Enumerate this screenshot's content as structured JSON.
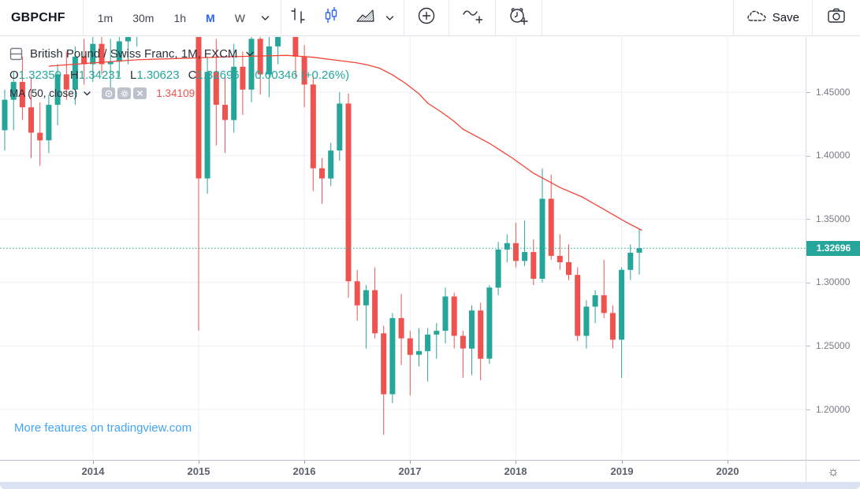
{
  "toolbar": {
    "symbol": "GBPCHF",
    "intervals": [
      {
        "label": "1m",
        "active": false
      },
      {
        "label": "30m",
        "active": false
      },
      {
        "label": "1h",
        "active": false
      },
      {
        "label": "M",
        "active": true
      },
      {
        "label": "W",
        "active": false
      }
    ],
    "save_label": "Save"
  },
  "legend": {
    "title": "British Pound / Swiss Franc, 1M, FXCM",
    "open_label": "O",
    "open": "1.32350",
    "high_label": "H",
    "high": "1.34231",
    "low_label": "L",
    "low": "1.30623",
    "close_label": "C",
    "close": "1.32696",
    "change": "+0.00346 (+0.26%)",
    "ma_label": "MA (50, close)",
    "ma_value": "1.34109"
  },
  "watermark": {
    "link_text": "More features on tradingview.com"
  },
  "price_axis": {
    "last_price_label": "1.32696"
  },
  "colors": {
    "up": "#26a69a",
    "down": "#ef5350",
    "ma_line": "#f44336",
    "accent_blue": "#2962ff",
    "link_blue": "#42a5f5",
    "grid": "#eef1f8",
    "badge_bg": "#26a69a"
  },
  "chart_data": {
    "type": "candlestick",
    "title": "British Pound / Swiss Franc",
    "interval": "1M",
    "exchange": "FXCM",
    "legend_position": "top-left",
    "grid": true,
    "price_gridlines": [
      1.45,
      1.4,
      1.35,
      1.3,
      1.25,
      1.2
    ],
    "price_tick_labels": [
      "1.45000",
      "1.40000",
      "1.35000",
      "1.30000",
      "1.25000",
      "1.20000"
    ],
    "year_ticks": [
      {
        "label": "2014",
        "i": 10
      },
      {
        "label": "2015",
        "i": 22
      },
      {
        "label": "2016",
        "i": 34
      },
      {
        "label": "2017",
        "i": 46
      },
      {
        "label": "2018",
        "i": 58
      },
      {
        "label": "2019",
        "i": 70
      },
      {
        "label": "2020",
        "i": 82
      }
    ],
    "ylim_visible": [
      1.178,
      1.493
    ],
    "last_price": 1.32696,
    "candles": [
      [
        "2013-03",
        1.42,
        1.452,
        1.404,
        1.444
      ],
      [
        "2013-04",
        1.444,
        1.466,
        1.42,
        1.458
      ],
      [
        "2013-05",
        1.458,
        1.478,
        1.428,
        1.438
      ],
      [
        "2013-06",
        1.438,
        1.462,
        1.398,
        1.418
      ],
      [
        "2013-07",
        1.418,
        1.442,
        1.392,
        1.412
      ],
      [
        "2013-08",
        1.412,
        1.448,
        1.402,
        1.44
      ],
      [
        "2013-09",
        1.44,
        1.472,
        1.424,
        1.464
      ],
      [
        "2013-10",
        1.464,
        1.482,
        1.444,
        1.452
      ],
      [
        "2013-11",
        1.452,
        1.486,
        1.44,
        1.478
      ],
      [
        "2013-12",
        1.478,
        1.492,
        1.456,
        1.472
      ],
      [
        "2014-01",
        1.472,
        1.498,
        1.458,
        1.488
      ],
      [
        "2014-02",
        1.488,
        1.502,
        1.464,
        1.472
      ],
      [
        "2014-03",
        1.472,
        1.492,
        1.452,
        1.474
      ],
      [
        "2014-04",
        1.474,
        1.502,
        1.462,
        1.49
      ],
      [
        "2014-05",
        1.49,
        1.512,
        1.472,
        1.5
      ],
      [
        "2014-06",
        1.5,
        1.524,
        1.486,
        1.518
      ],
      [
        "2014-07",
        1.518,
        1.54,
        1.504,
        1.532
      ],
      [
        "2014-08",
        1.532,
        1.546,
        1.512,
        1.528
      ],
      [
        "2014-09",
        1.528,
        1.554,
        1.514,
        1.546
      ],
      [
        "2014-10",
        1.546,
        1.552,
        1.516,
        1.528
      ],
      [
        "2014-11",
        1.528,
        1.548,
        1.51,
        1.542
      ],
      [
        "2014-12",
        1.542,
        1.556,
        1.52,
        1.548
      ],
      [
        "2015-01",
        1.548,
        1.552,
        1.262,
        1.382
      ],
      [
        "2015-02",
        1.382,
        1.478,
        1.37,
        1.466
      ],
      [
        "2015-03",
        1.466,
        1.492,
        1.408,
        1.44
      ],
      [
        "2015-04",
        1.44,
        1.462,
        1.402,
        1.428
      ],
      [
        "2015-05",
        1.428,
        1.488,
        1.418,
        1.47
      ],
      [
        "2015-06",
        1.47,
        1.482,
        1.432,
        1.452
      ],
      [
        "2015-07",
        1.452,
        1.502,
        1.442,
        1.492
      ],
      [
        "2015-08",
        1.492,
        1.504,
        1.448,
        1.464
      ],
      [
        "2015-09",
        1.464,
        1.498,
        1.446,
        1.486
      ],
      [
        "2015-10",
        1.486,
        1.532,
        1.472,
        1.522
      ],
      [
        "2015-11",
        1.522,
        1.548,
        1.498,
        1.536
      ],
      [
        "2015-12",
        1.536,
        1.544,
        1.462,
        1.478
      ],
      [
        "2016-01",
        1.478,
        1.487,
        1.438,
        1.456
      ],
      [
        "2016-02",
        1.456,
        1.463,
        1.372,
        1.39
      ],
      [
        "2016-03",
        1.39,
        1.398,
        1.362,
        1.382
      ],
      [
        "2016-04",
        1.382,
        1.41,
        1.376,
        1.404
      ],
      [
        "2016-05",
        1.404,
        1.45,
        1.396,
        1.441
      ],
      [
        "2016-06",
        1.441,
        1.449,
        1.288,
        1.301
      ],
      [
        "2016-07",
        1.301,
        1.31,
        1.27,
        1.282
      ],
      [
        "2016-08",
        1.282,
        1.298,
        1.248,
        1.294
      ],
      [
        "2016-09",
        1.294,
        1.312,
        1.256,
        1.26
      ],
      [
        "2016-10",
        1.26,
        1.266,
        1.18,
        1.212
      ],
      [
        "2016-11",
        1.212,
        1.276,
        1.205,
        1.272
      ],
      [
        "2016-12",
        1.272,
        1.291,
        1.235,
        1.256
      ],
      [
        "2017-01",
        1.256,
        1.262,
        1.211,
        1.243
      ],
      [
        "2017-02",
        1.243,
        1.264,
        1.234,
        1.246
      ],
      [
        "2017-03",
        1.246,
        1.264,
        1.222,
        1.259
      ],
      [
        "2017-04",
        1.259,
        1.268,
        1.24,
        1.262
      ],
      [
        "2017-05",
        1.262,
        1.296,
        1.252,
        1.289
      ],
      [
        "2017-06",
        1.289,
        1.292,
        1.248,
        1.258
      ],
      [
        "2017-07",
        1.258,
        1.262,
        1.225,
        1.248
      ],
      [
        "2017-08",
        1.248,
        1.282,
        1.227,
        1.278
      ],
      [
        "2017-09",
        1.278,
        1.284,
        1.223,
        1.24
      ],
      [
        "2017-10",
        1.24,
        1.298,
        1.236,
        1.296
      ],
      [
        "2017-11",
        1.296,
        1.332,
        1.29,
        1.326
      ],
      [
        "2017-12",
        1.326,
        1.338,
        1.316,
        1.331
      ],
      [
        "2018-01",
        1.331,
        1.347,
        1.312,
        1.317
      ],
      [
        "2018-02",
        1.317,
        1.349,
        1.313,
        1.324
      ],
      [
        "2018-03",
        1.324,
        1.334,
        1.298,
        1.303
      ],
      [
        "2018-04",
        1.303,
        1.39,
        1.3,
        1.366
      ],
      [
        "2018-05",
        1.366,
        1.385,
        1.318,
        1.321
      ],
      [
        "2018-06",
        1.321,
        1.338,
        1.31,
        1.316
      ],
      [
        "2018-07",
        1.316,
        1.33,
        1.302,
        1.306
      ],
      [
        "2018-08",
        1.306,
        1.312,
        1.254,
        1.258
      ],
      [
        "2018-09",
        1.258,
        1.286,
        1.248,
        1.281
      ],
      [
        "2018-10",
        1.281,
        1.294,
        1.268,
        1.29
      ],
      [
        "2018-11",
        1.29,
        1.318,
        1.272,
        1.276
      ],
      [
        "2018-12",
        1.276,
        1.282,
        1.248,
        1.255
      ],
      [
        "2019-01",
        1.255,
        1.312,
        1.225,
        1.31
      ],
      [
        "2019-02",
        1.31,
        1.33,
        1.302,
        1.3235
      ],
      [
        "2019-03",
        1.3235,
        1.34231,
        1.30623,
        1.32696
      ]
    ],
    "ma50": [
      [
        5,
        1.4705
      ],
      [
        10,
        1.473
      ],
      [
        15,
        1.4755
      ],
      [
        21,
        1.4768
      ],
      [
        26,
        1.478
      ],
      [
        32,
        1.479
      ],
      [
        35,
        1.4775
      ],
      [
        38,
        1.4748
      ],
      [
        40,
        1.473
      ],
      [
        41,
        1.4717
      ],
      [
        42.5,
        1.469
      ],
      [
        44,
        1.4636
      ],
      [
        45.5,
        1.4568
      ],
      [
        47,
        1.4487
      ],
      [
        48,
        1.4413
      ],
      [
        49.5,
        1.4345
      ],
      [
        51,
        1.427
      ],
      [
        52,
        1.4208
      ],
      [
        55,
        1.4097
      ],
      [
        57.5,
        1.3985
      ],
      [
        60,
        1.3861
      ],
      [
        63,
        1.3749
      ],
      [
        65.5,
        1.3675
      ],
      [
        68,
        1.3576
      ],
      [
        70.5,
        1.3476
      ],
      [
        72.3,
        1.3411
      ]
    ]
  }
}
